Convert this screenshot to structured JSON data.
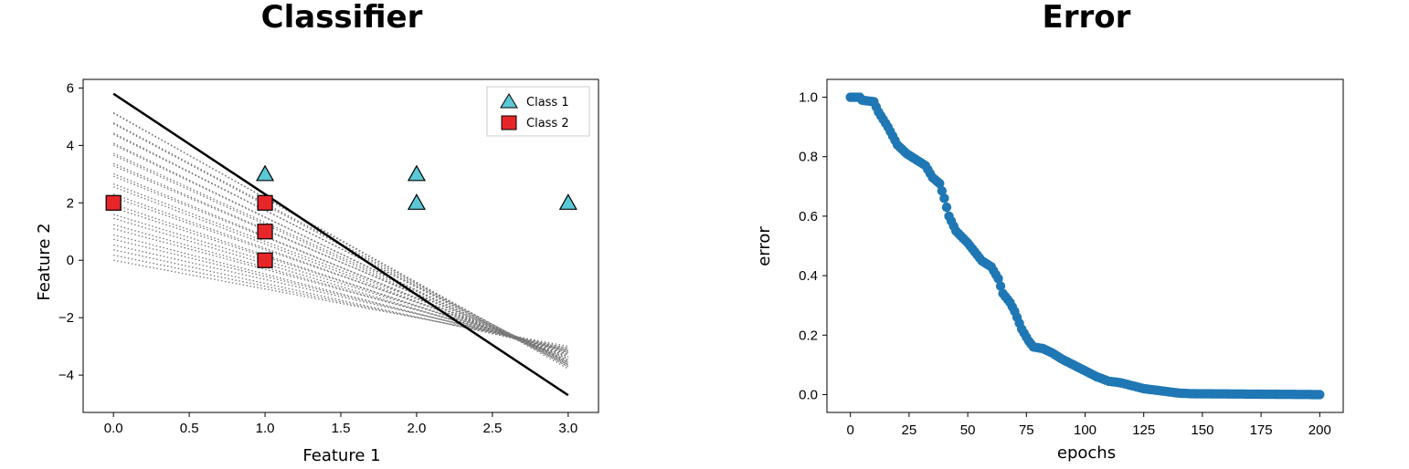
{
  "chart_data": [
    {
      "type": "scatter",
      "title": "Classifier",
      "xlabel": "Feature 1",
      "ylabel": "Feature 2",
      "xlim": [
        -0.2,
        3.2
      ],
      "ylim": [
        -5.3,
        6.3
      ],
      "xticks": [
        "0.0",
        "0.5",
        "1.0",
        "1.5",
        "2.0",
        "2.5",
        "3.0"
      ],
      "xtick_values": [
        0,
        0.5,
        1,
        1.5,
        2,
        2.5,
        3
      ],
      "yticks": [
        "6",
        "4",
        "2",
        "0",
        "−2",
        "−4"
      ],
      "ytick_values": [
        6,
        4,
        2,
        0,
        -2,
        -4
      ],
      "legend_position": "top-right",
      "grid": false,
      "series": [
        {
          "name": "Class 1",
          "marker": "triangle",
          "color": "#5bc8d6",
          "points": [
            [
              1,
              3
            ],
            [
              2,
              3
            ],
            [
              2,
              2
            ],
            [
              3,
              2
            ]
          ]
        },
        {
          "name": "Class 2",
          "marker": "square",
          "color": "#e8262a",
          "points": [
            [
              0,
              2
            ],
            [
              1,
              2
            ],
            [
              1,
              1
            ],
            [
              1,
              0
            ]
          ]
        }
      ],
      "decision_boundary": {
        "final_line": [
          [
            0,
            5.8
          ],
          [
            3,
            -4.7
          ]
        ],
        "history_lines": {
          "style": "dotted",
          "color": "#777777",
          "start_y_at_x0": [
            0.0,
            1.0
          ],
          "end_y_at_x3": [
            -3.0,
            -4.7
          ],
          "count": 30
        }
      }
    },
    {
      "type": "scatter",
      "title": "Error",
      "xlabel": "epochs",
      "ylabel": "error",
      "xlim": [
        -10,
        210
      ],
      "ylim": [
        -0.06,
        1.06
      ],
      "xticks": [
        "0",
        "25",
        "50",
        "75",
        "100",
        "125",
        "150",
        "175",
        "200"
      ],
      "xtick_values": [
        0,
        25,
        50,
        75,
        100,
        125,
        150,
        175,
        200
      ],
      "yticks": [
        "1.0",
        "0.8",
        "0.6",
        "0.4",
        "0.2",
        "0.0"
      ],
      "ytick_values": [
        1.0,
        0.8,
        0.6,
        0.4,
        0.2,
        0.0
      ],
      "grid": false,
      "color": "#1f77b4",
      "curve_keypoints": [
        [
          0,
          1.0
        ],
        [
          4,
          1.0
        ],
        [
          5,
          0.99
        ],
        [
          10,
          0.985
        ],
        [
          12,
          0.95
        ],
        [
          16,
          0.9
        ],
        [
          20,
          0.84
        ],
        [
          24,
          0.81
        ],
        [
          28,
          0.79
        ],
        [
          32,
          0.77
        ],
        [
          35,
          0.73
        ],
        [
          38,
          0.71
        ],
        [
          40,
          0.66
        ],
        [
          42,
          0.6
        ],
        [
          45,
          0.55
        ],
        [
          50,
          0.51
        ],
        [
          53,
          0.48
        ],
        [
          56,
          0.45
        ],
        [
          60,
          0.43
        ],
        [
          63,
          0.39
        ],
        [
          65,
          0.34
        ],
        [
          68,
          0.31
        ],
        [
          70,
          0.28
        ],
        [
          73,
          0.22
        ],
        [
          76,
          0.18
        ],
        [
          78,
          0.16
        ],
        [
          82,
          0.155
        ],
        [
          86,
          0.14
        ],
        [
          90,
          0.12
        ],
        [
          95,
          0.1
        ],
        [
          100,
          0.08
        ],
        [
          105,
          0.06
        ],
        [
          110,
          0.045
        ],
        [
          115,
          0.04
        ],
        [
          120,
          0.03
        ],
        [
          125,
          0.02
        ],
        [
          130,
          0.015
        ],
        [
          135,
          0.01
        ],
        [
          140,
          0.005
        ],
        [
          145,
          0.003
        ],
        [
          200,
          0.0
        ]
      ]
    }
  ]
}
